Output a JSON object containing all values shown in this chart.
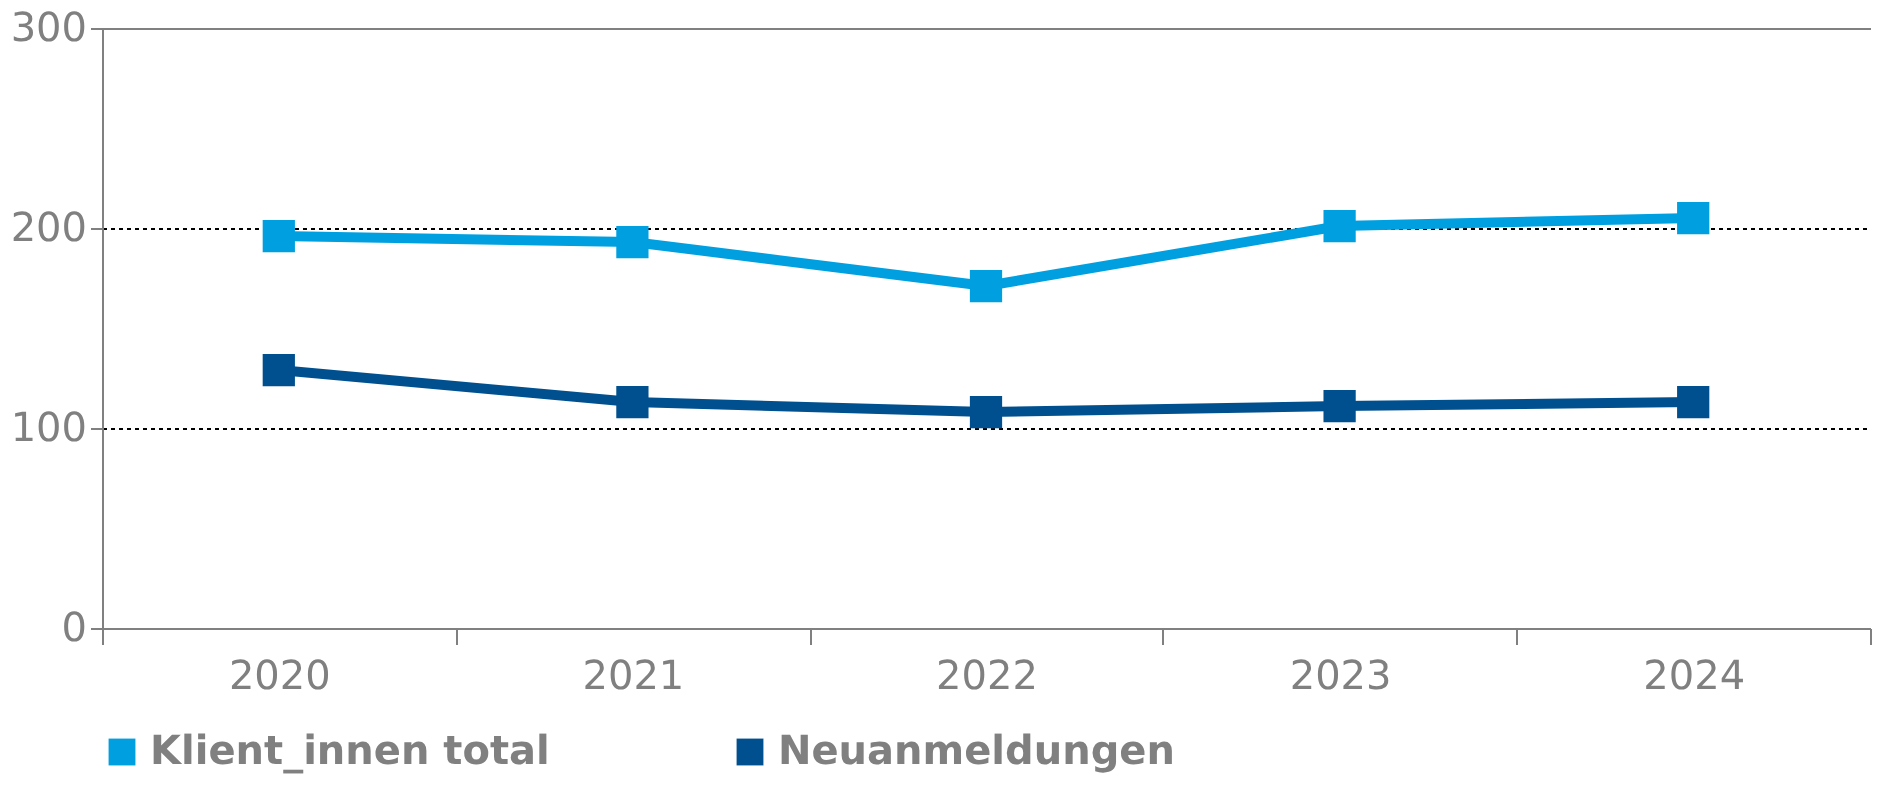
{
  "chart_data": {
    "type": "line",
    "categories": [
      "2020",
      "2021",
      "2022",
      "2023",
      "2024"
    ],
    "series": [
      {
        "name": "Klient_innen total",
        "color": "#00a0e0",
        "values": [
          196,
          193,
          171,
          201,
          205
        ]
      },
      {
        "name": "Neuanmeldungen",
        "color": "#00508f",
        "values": [
          129,
          113,
          108,
          111,
          113
        ]
      }
    ],
    "ylim": [
      0,
      300
    ],
    "yticks": [
      0,
      100,
      200,
      300
    ],
    "grid": "y",
    "legend": "bottom",
    "marker": "square",
    "line_style": "solid"
  }
}
